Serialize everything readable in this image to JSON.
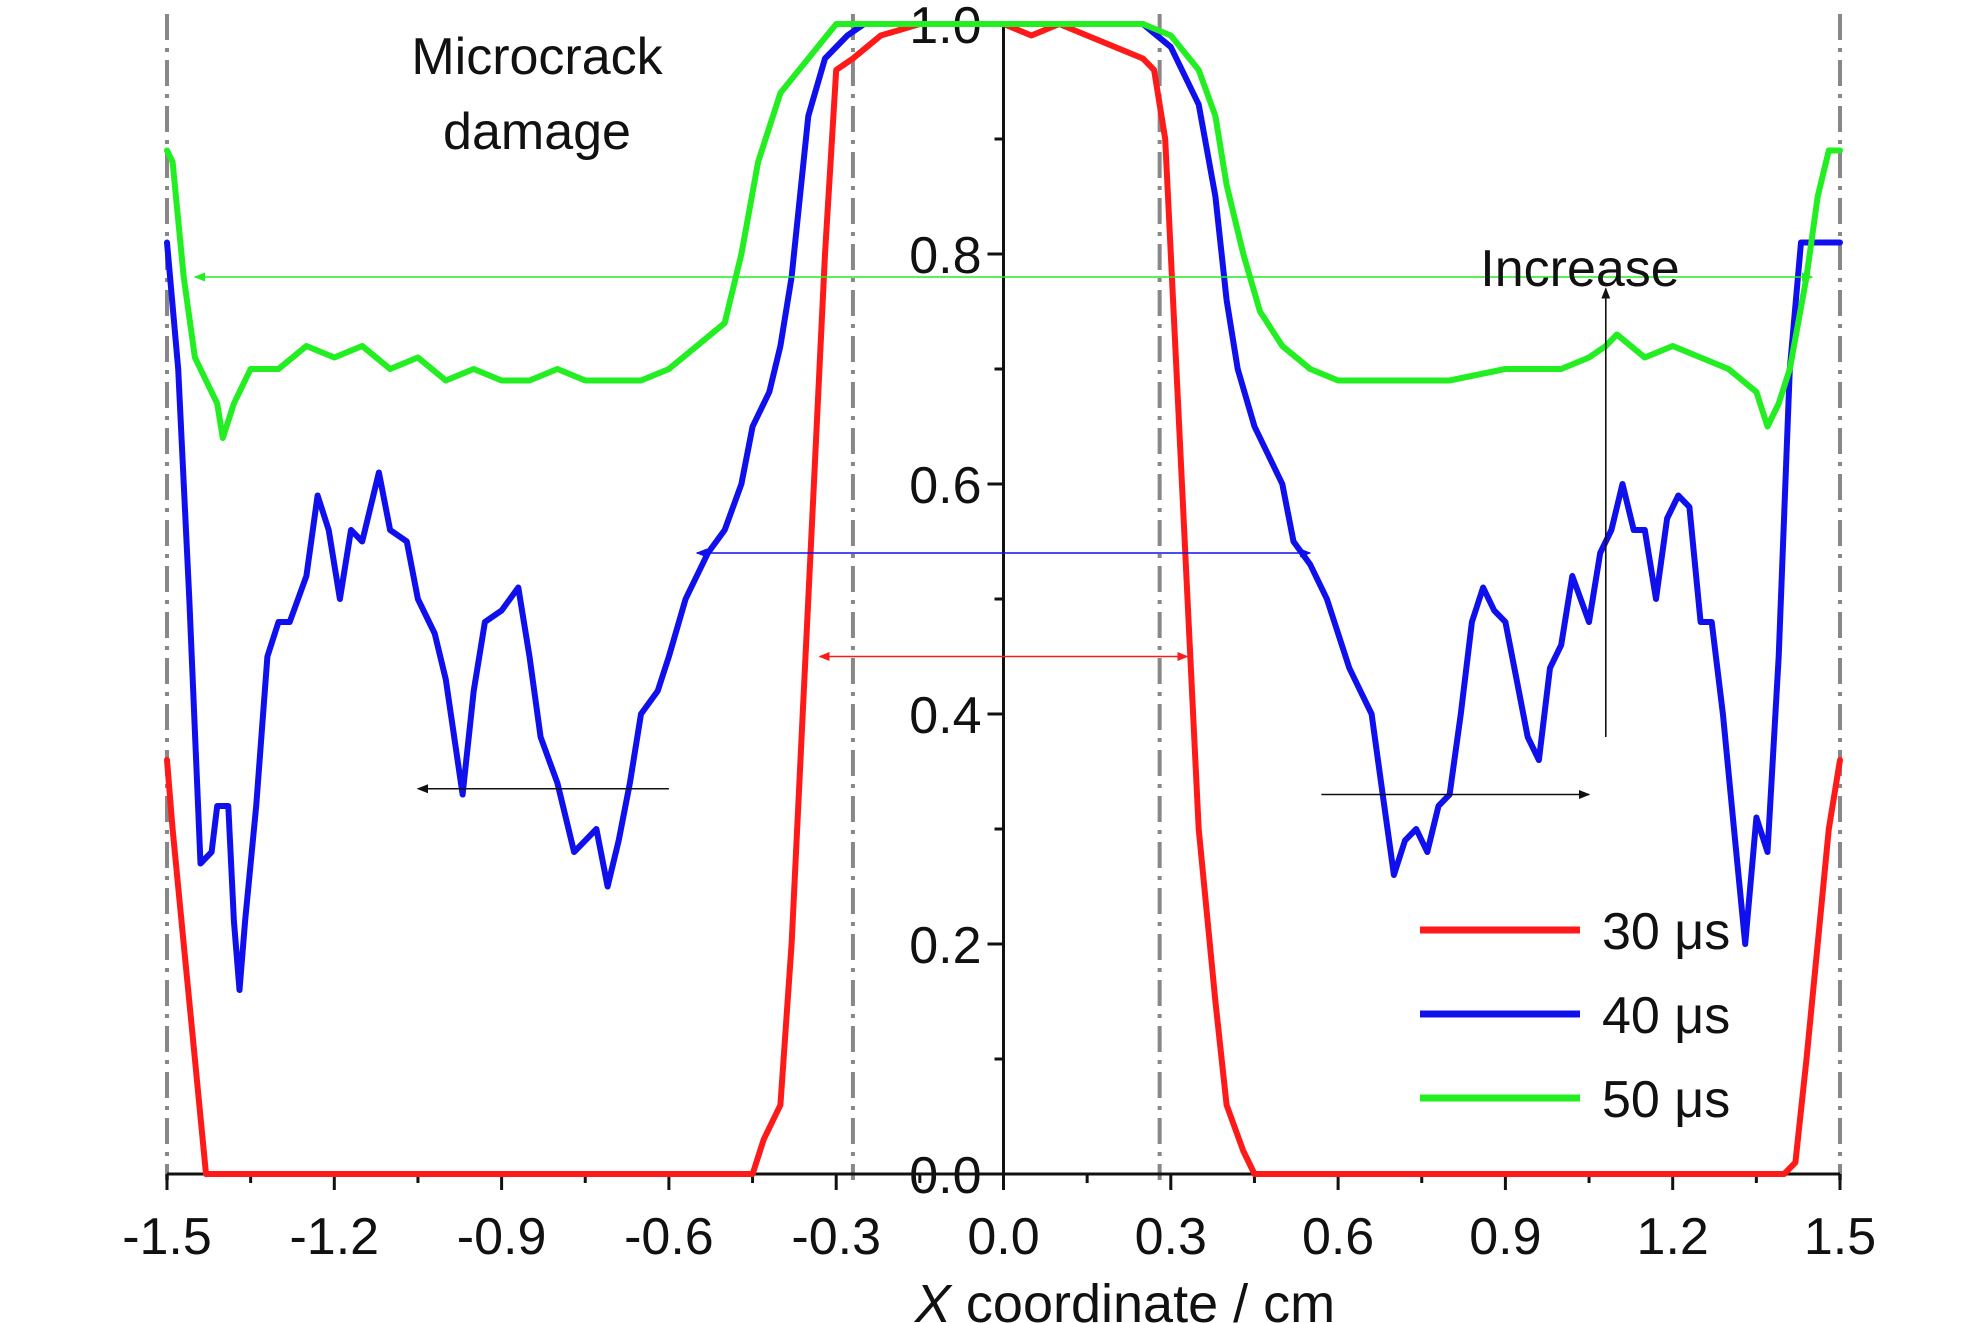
{
  "chart_data": {
    "type": "line",
    "title": "",
    "xlabel_italic": "X",
    "xlabel_rest": " coordinate / cm",
    "ylabel": "",
    "xlim": [
      -1.5,
      1.5
    ],
    "ylim": [
      0.0,
      1.0
    ],
    "x_ticks": [
      "-1.5",
      "-1.2",
      "-0.9",
      "-0.6",
      "-0.3",
      "0.0",
      "0.3",
      "0.6",
      "0.9",
      "1.2",
      "1.5"
    ],
    "x_tick_values": [
      -1.5,
      -1.2,
      -0.9,
      -0.6,
      -0.3,
      0.0,
      0.3,
      0.6,
      0.9,
      1.2,
      1.5
    ],
    "y_ticks": [
      "0.0",
      "0.2",
      "0.4",
      "0.6",
      "0.8",
      "1.0"
    ],
    "y_tick_values": [
      0.0,
      0.2,
      0.4,
      0.6,
      0.8,
      1.0
    ],
    "grid": false,
    "legend_position": "bottom-right",
    "annotations": {
      "microcrack": [
        "Microcrack",
        "damage"
      ],
      "increase": "Increase"
    },
    "reference_lines_x": [
      -1.5,
      -0.27,
      0.28,
      1.5
    ],
    "width_markers": [
      {
        "series": "50 μs",
        "y": 0.78,
        "x_from": -1.45,
        "x_to": 1.45
      },
      {
        "series": "40 μs",
        "y": 0.54,
        "x_from": -0.55,
        "x_to": 0.55
      },
      {
        "series": "30 μs",
        "y": 0.45,
        "x_from": -0.33,
        "x_to": 0.33
      }
    ],
    "trend_arrows": [
      {
        "from": [
          -0.6,
          0.335
        ],
        "to": [
          -1.05,
          0.335
        ]
      },
      {
        "from": [
          0.57,
          0.33
        ],
        "to": [
          1.05,
          0.33
        ]
      },
      {
        "from": [
          1.08,
          0.38
        ],
        "to": [
          1.08,
          0.77
        ]
      }
    ],
    "series": [
      {
        "name": "30 μs",
        "color": "#ff1a1a",
        "points": [
          [
            -1.5,
            0.36
          ],
          [
            -1.49,
            0.3
          ],
          [
            -1.47,
            0.2
          ],
          [
            -1.45,
            0.1
          ],
          [
            -1.43,
            0.0
          ],
          [
            -1.3,
            0.0
          ],
          [
            -1.0,
            0.0
          ],
          [
            -0.7,
            0.0
          ],
          [
            -0.5,
            0.0
          ],
          [
            -0.45,
            0.0
          ],
          [
            -0.43,
            0.03
          ],
          [
            -0.4,
            0.06
          ],
          [
            -0.38,
            0.2
          ],
          [
            -0.36,
            0.4
          ],
          [
            -0.34,
            0.6
          ],
          [
            -0.32,
            0.8
          ],
          [
            -0.3,
            0.96
          ],
          [
            -0.27,
            0.97
          ],
          [
            -0.22,
            0.99
          ],
          [
            -0.15,
            1.0
          ],
          [
            -0.1,
            1.0
          ],
          [
            -0.05,
            1.0
          ],
          [
            0.0,
            1.0
          ],
          [
            0.05,
            0.99
          ],
          [
            0.1,
            1.0
          ],
          [
            0.15,
            0.99
          ],
          [
            0.2,
            0.98
          ],
          [
            0.25,
            0.97
          ],
          [
            0.27,
            0.96
          ],
          [
            0.29,
            0.9
          ],
          [
            0.31,
            0.7
          ],
          [
            0.33,
            0.5
          ],
          [
            0.35,
            0.3
          ],
          [
            0.38,
            0.15
          ],
          [
            0.4,
            0.06
          ],
          [
            0.43,
            0.02
          ],
          [
            0.45,
            0.0
          ],
          [
            0.6,
            0.0
          ],
          [
            0.9,
            0.0
          ],
          [
            1.2,
            0.0
          ],
          [
            1.4,
            0.0
          ],
          [
            1.42,
            0.01
          ],
          [
            1.44,
            0.1
          ],
          [
            1.46,
            0.2
          ],
          [
            1.48,
            0.3
          ],
          [
            1.5,
            0.36
          ]
        ]
      },
      {
        "name": "40 μs",
        "color": "#1010ee",
        "points": [
          [
            -1.5,
            0.81
          ],
          [
            -1.48,
            0.7
          ],
          [
            -1.46,
            0.5
          ],
          [
            -1.44,
            0.27
          ],
          [
            -1.42,
            0.28
          ],
          [
            -1.41,
            0.32
          ],
          [
            -1.39,
            0.32
          ],
          [
            -1.38,
            0.22
          ],
          [
            -1.37,
            0.16
          ],
          [
            -1.36,
            0.22
          ],
          [
            -1.34,
            0.32
          ],
          [
            -1.32,
            0.45
          ],
          [
            -1.3,
            0.48
          ],
          [
            -1.28,
            0.48
          ],
          [
            -1.25,
            0.52
          ],
          [
            -1.23,
            0.59
          ],
          [
            -1.21,
            0.56
          ],
          [
            -1.19,
            0.5
          ],
          [
            -1.17,
            0.56
          ],
          [
            -1.15,
            0.55
          ],
          [
            -1.12,
            0.61
          ],
          [
            -1.1,
            0.56
          ],
          [
            -1.07,
            0.55
          ],
          [
            -1.05,
            0.5
          ],
          [
            -1.02,
            0.47
          ],
          [
            -1.0,
            0.43
          ],
          [
            -0.97,
            0.33
          ],
          [
            -0.95,
            0.42
          ],
          [
            -0.93,
            0.48
          ],
          [
            -0.9,
            0.49
          ],
          [
            -0.87,
            0.51
          ],
          [
            -0.85,
            0.45
          ],
          [
            -0.83,
            0.38
          ],
          [
            -0.8,
            0.34
          ],
          [
            -0.77,
            0.28
          ],
          [
            -0.75,
            0.29
          ],
          [
            -0.73,
            0.3
          ],
          [
            -0.71,
            0.25
          ],
          [
            -0.69,
            0.29
          ],
          [
            -0.67,
            0.34
          ],
          [
            -0.65,
            0.4
          ],
          [
            -0.62,
            0.42
          ],
          [
            -0.6,
            0.45
          ],
          [
            -0.57,
            0.5
          ],
          [
            -0.53,
            0.54
          ],
          [
            -0.5,
            0.56
          ],
          [
            -0.47,
            0.6
          ],
          [
            -0.45,
            0.65
          ],
          [
            -0.42,
            0.68
          ],
          [
            -0.4,
            0.72
          ],
          [
            -0.38,
            0.78
          ],
          [
            -0.35,
            0.92
          ],
          [
            -0.32,
            0.97
          ],
          [
            -0.28,
            0.99
          ],
          [
            -0.25,
            1.0
          ],
          [
            -0.2,
            1.0
          ],
          [
            -0.1,
            1.0
          ],
          [
            0.0,
            1.0
          ],
          [
            0.1,
            1.0
          ],
          [
            0.2,
            1.0
          ],
          [
            0.25,
            1.0
          ],
          [
            0.3,
            0.98
          ],
          [
            0.35,
            0.93
          ],
          [
            0.38,
            0.85
          ],
          [
            0.4,
            0.76
          ],
          [
            0.42,
            0.7
          ],
          [
            0.45,
            0.65
          ],
          [
            0.48,
            0.62
          ],
          [
            0.5,
            0.6
          ],
          [
            0.52,
            0.55
          ],
          [
            0.55,
            0.53
          ],
          [
            0.58,
            0.5
          ],
          [
            0.6,
            0.47
          ],
          [
            0.62,
            0.44
          ],
          [
            0.64,
            0.42
          ],
          [
            0.66,
            0.4
          ],
          [
            0.68,
            0.33
          ],
          [
            0.7,
            0.26
          ],
          [
            0.72,
            0.29
          ],
          [
            0.74,
            0.3
          ],
          [
            0.76,
            0.28
          ],
          [
            0.78,
            0.32
          ],
          [
            0.8,
            0.33
          ],
          [
            0.82,
            0.4
          ],
          [
            0.84,
            0.48
          ],
          [
            0.86,
            0.51
          ],
          [
            0.88,
            0.49
          ],
          [
            0.9,
            0.48
          ],
          [
            0.92,
            0.43
          ],
          [
            0.94,
            0.38
          ],
          [
            0.96,
            0.36
          ],
          [
            0.98,
            0.44
          ],
          [
            1.0,
            0.46
          ],
          [
            1.02,
            0.52
          ],
          [
            1.05,
            0.48
          ],
          [
            1.07,
            0.54
          ],
          [
            1.09,
            0.56
          ],
          [
            1.11,
            0.6
          ],
          [
            1.13,
            0.56
          ],
          [
            1.15,
            0.56
          ],
          [
            1.17,
            0.5
          ],
          [
            1.19,
            0.57
          ],
          [
            1.21,
            0.59
          ],
          [
            1.23,
            0.58
          ],
          [
            1.25,
            0.48
          ],
          [
            1.27,
            0.48
          ],
          [
            1.29,
            0.4
          ],
          [
            1.31,
            0.3
          ],
          [
            1.33,
            0.2
          ],
          [
            1.35,
            0.31
          ],
          [
            1.37,
            0.28
          ],
          [
            1.39,
            0.45
          ],
          [
            1.41,
            0.7
          ],
          [
            1.43,
            0.81
          ],
          [
            1.5,
            0.81
          ]
        ]
      },
      {
        "name": "50 μs",
        "color": "#22ee22",
        "points": [
          [
            -1.5,
            0.89
          ],
          [
            -1.49,
            0.88
          ],
          [
            -1.47,
            0.78
          ],
          [
            -1.45,
            0.71
          ],
          [
            -1.43,
            0.69
          ],
          [
            -1.41,
            0.67
          ],
          [
            -1.4,
            0.64
          ],
          [
            -1.38,
            0.67
          ],
          [
            -1.35,
            0.7
          ],
          [
            -1.3,
            0.7
          ],
          [
            -1.25,
            0.72
          ],
          [
            -1.2,
            0.71
          ],
          [
            -1.15,
            0.72
          ],
          [
            -1.1,
            0.7
          ],
          [
            -1.05,
            0.71
          ],
          [
            -1.0,
            0.69
          ],
          [
            -0.95,
            0.7
          ],
          [
            -0.9,
            0.69
          ],
          [
            -0.85,
            0.69
          ],
          [
            -0.8,
            0.7
          ],
          [
            -0.75,
            0.69
          ],
          [
            -0.7,
            0.69
          ],
          [
            -0.65,
            0.69
          ],
          [
            -0.6,
            0.7
          ],
          [
            -0.55,
            0.72
          ],
          [
            -0.5,
            0.74
          ],
          [
            -0.47,
            0.8
          ],
          [
            -0.44,
            0.88
          ],
          [
            -0.4,
            0.94
          ],
          [
            -0.35,
            0.97
          ],
          [
            -0.3,
            1.0
          ],
          [
            -0.25,
            1.0
          ],
          [
            -0.2,
            1.0
          ],
          [
            -0.1,
            1.0
          ],
          [
            0.0,
            1.0
          ],
          [
            0.1,
            1.0
          ],
          [
            0.2,
            1.0
          ],
          [
            0.25,
            1.0
          ],
          [
            0.3,
            0.99
          ],
          [
            0.35,
            0.96
          ],
          [
            0.38,
            0.92
          ],
          [
            0.4,
            0.86
          ],
          [
            0.43,
            0.8
          ],
          [
            0.46,
            0.75
          ],
          [
            0.5,
            0.72
          ],
          [
            0.55,
            0.7
          ],
          [
            0.6,
            0.69
          ],
          [
            0.7,
            0.69
          ],
          [
            0.8,
            0.69
          ],
          [
            0.9,
            0.7
          ],
          [
            1.0,
            0.7
          ],
          [
            1.05,
            0.71
          ],
          [
            1.08,
            0.72
          ],
          [
            1.1,
            0.73
          ],
          [
            1.15,
            0.71
          ],
          [
            1.2,
            0.72
          ],
          [
            1.25,
            0.71
          ],
          [
            1.3,
            0.7
          ],
          [
            1.35,
            0.68
          ],
          [
            1.37,
            0.65
          ],
          [
            1.39,
            0.67
          ],
          [
            1.41,
            0.7
          ],
          [
            1.44,
            0.78
          ],
          [
            1.46,
            0.85
          ],
          [
            1.48,
            0.89
          ],
          [
            1.5,
            0.89
          ]
        ]
      }
    ]
  }
}
